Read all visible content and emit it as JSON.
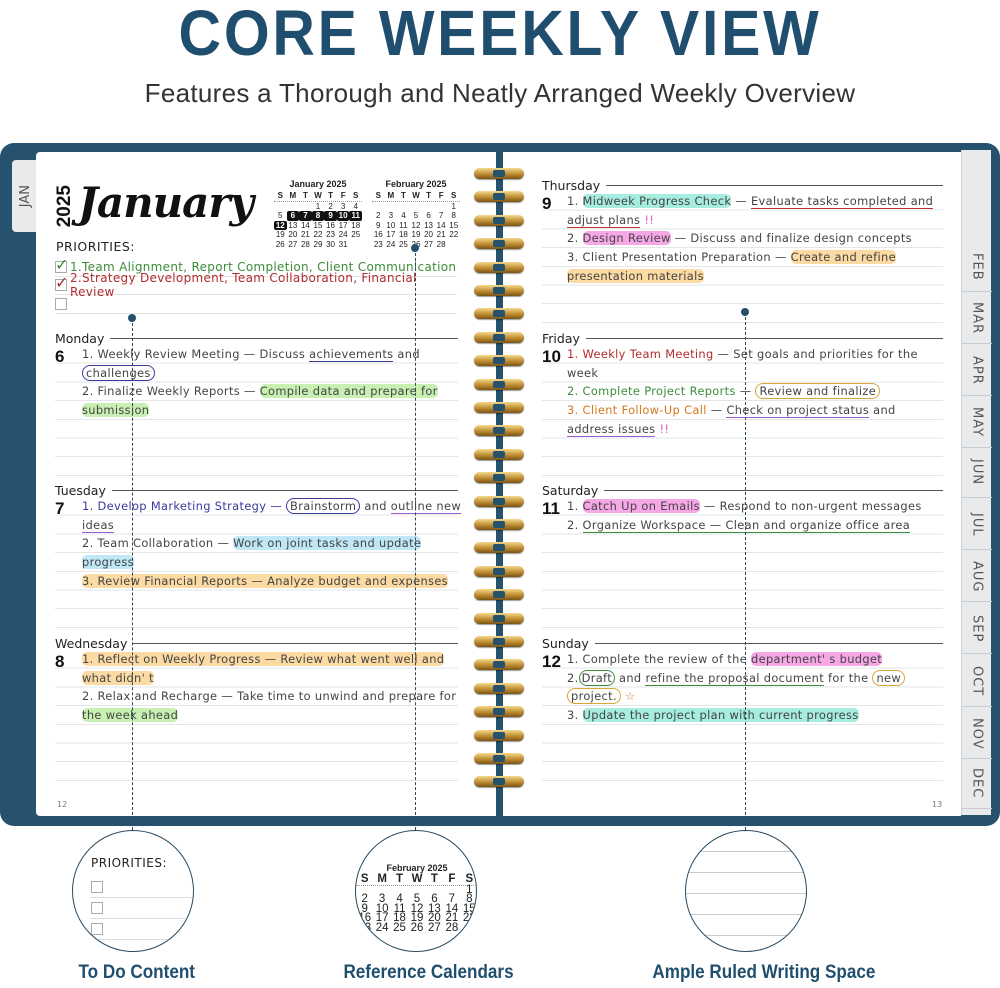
{
  "header": {
    "title": "CORE WEEKLY VIEW",
    "subtitle": "Features a Thorough and Neatly Arranged Weekly Overview"
  },
  "colors": {
    "brand": "#1f4e6e",
    "cover": "#26526e",
    "coil": "#c9993a"
  },
  "left_page": {
    "year": "2025",
    "month": "January",
    "page_number": "12",
    "tab": "JAN",
    "priorities_label": "PRIORITIES:",
    "priorities": [
      {
        "text": "1.Team Alignment, Report Completion, Client Communication",
        "checked": true,
        "color": "green"
      },
      {
        "text": "2.Strategy Development, Team Collaboration, Financial Review",
        "checked": true,
        "color": "red"
      },
      {
        "text": "",
        "checked": false,
        "color": ""
      }
    ]
  },
  "right_page": {
    "page_number": "13"
  },
  "calendars": [
    {
      "title": "January 2025",
      "weekdays": [
        "S",
        "M",
        "T",
        "W",
        "T",
        "F",
        "S"
      ],
      "weeks": [
        [
          "",
          "",
          "",
          "1",
          "2",
          "3",
          "4"
        ],
        [
          "5",
          "6",
          "7",
          "8",
          "9",
          "10",
          "11"
        ],
        [
          "12",
          "13",
          "14",
          "15",
          "16",
          "17",
          "18"
        ],
        [
          "19",
          "20",
          "21",
          "22",
          "23",
          "24",
          "25"
        ],
        [
          "26",
          "27",
          "28",
          "29",
          "30",
          "31",
          ""
        ]
      ],
      "highlighted": [
        "6",
        "7",
        "8",
        "9",
        "10",
        "11",
        "12"
      ]
    },
    {
      "title": "February 2025",
      "weekdays": [
        "S",
        "M",
        "T",
        "W",
        "T",
        "F",
        "S"
      ],
      "weeks": [
        [
          "",
          "",
          "",
          "",
          "",
          "",
          "1"
        ],
        [
          "2",
          "3",
          "4",
          "5",
          "6",
          "7",
          "8"
        ],
        [
          "9",
          "10",
          "11",
          "12",
          "13",
          "14",
          "15"
        ],
        [
          "16",
          "17",
          "18",
          "19",
          "20",
          "21",
          "22"
        ],
        [
          "23",
          "24",
          "25",
          "26",
          "27",
          "28",
          ""
        ]
      ],
      "highlighted": []
    }
  ],
  "tabs": [
    "FEB",
    "MAR",
    "APR",
    "MAY",
    "JUN",
    "JUL",
    "AUG",
    "SEP",
    "OCT",
    "NOV",
    "DEC"
  ],
  "days": [
    {
      "name": "Monday",
      "num": "6",
      "lines": [
        [
          {
            "t": "1. Weekly Review Meeting — Discuss "
          },
          {
            "t": "achievements",
            "s": "ul-blue"
          },
          {
            "t": " and"
          }
        ],
        [
          {
            "t": "challenges",
            "s": "ci-blue"
          }
        ],
        [
          {
            "t": "2. Finalize Weekly Reports — "
          },
          {
            "t": "Compile data and prepare for",
            "s": "hl-green"
          }
        ],
        [
          {
            "t": "submission",
            "s": "hl-green"
          }
        ]
      ]
    },
    {
      "name": "Tuesday",
      "num": "7",
      "lines": [
        [
          {
            "t": "1. Develop Marketing Strategy — ",
            "s": "c-blue"
          },
          {
            "t": "Brainstorm",
            "s": "ci-blue"
          },
          {
            "t": " and "
          },
          {
            "t": "outline new",
            "s": "ul-purple"
          }
        ],
        [
          {
            "t": "ideas",
            "s": "ul-purple"
          }
        ],
        [
          {
            "t": "2. Team Collaboration — "
          },
          {
            "t": "Work on joint tasks and update",
            "s": "hl-blue"
          }
        ],
        [
          {
            "t": "progress",
            "s": "hl-blue"
          }
        ],
        [
          {
            "t": "3. Review Financial Reports — Analyze budget and expenses",
            "s": "hl-orange"
          }
        ]
      ]
    },
    {
      "name": "Wednesday",
      "num": "8",
      "lines": [
        [
          {
            "t": "1. Reflect on Weekly Progress — Review what went well and",
            "s": "hl-orange"
          }
        ],
        [
          {
            "t": "what didn' t",
            "s": "hl-orange"
          }
        ],
        [
          {
            "t": "2. Relax and Recharge — Take time to unwind and prepare for"
          }
        ],
        [
          {
            "t": "the week ahead",
            "s": "hl-green"
          }
        ]
      ]
    },
    {
      "name": "Thursday",
      "num": "9",
      "lines": [
        [
          {
            "t": "1. "
          },
          {
            "t": "Midweek Progress Check",
            "s": "hl-cyan"
          },
          {
            "t": " — "
          },
          {
            "t": "Evaluate tasks completed and",
            "s": "ul-red"
          }
        ],
        [
          {
            "t": "adjust plans",
            "s": "ul-red"
          },
          {
            "t": " !!",
            "s": "c-pink"
          }
        ],
        [
          {
            "t": "2. "
          },
          {
            "t": "Design Review",
            "s": "hl-pink"
          },
          {
            "t": " — Discuss and finalize design concepts"
          }
        ],
        [
          {
            "t": "3. Client Presentation Preparation — "
          },
          {
            "t": "Create and refine",
            "s": "hl-orange"
          }
        ],
        [
          {
            "t": "presentation materials",
            "s": "hl-orange"
          }
        ]
      ]
    },
    {
      "name": "Friday",
      "num": "10",
      "lines": [
        [
          {
            "t": "1. Weekly Team Meeting",
            "s": "c-red"
          },
          {
            "t": " — Set goals and priorities for the"
          }
        ],
        [
          {
            "t": "week"
          }
        ],
        [
          {
            "t": "2. Complete Project Reports",
            "s": "c-green"
          },
          {
            "t": " — "
          },
          {
            "t": "Review and finalize",
            "s": "ci-orange"
          }
        ],
        [
          {
            "t": "3. Client Follow-Up Call",
            "s": "c-orange"
          },
          {
            "t": " — "
          },
          {
            "t": "Check on project status",
            "s": "ul-purple"
          },
          {
            "t": " and"
          }
        ],
        [
          {
            "t": "address issues",
            "s": "ul-purple"
          },
          {
            "t": " !!",
            "s": "c-pink"
          }
        ]
      ]
    },
    {
      "name": "Saturday",
      "num": "11",
      "lines": [
        [
          {
            "t": "1. "
          },
          {
            "t": "Catch Up on Emails",
            "s": "hl-pink"
          },
          {
            "t": " — Respond to non-urgent messages"
          }
        ],
        [
          {
            "t": "2. "
          },
          {
            "t": "Organize Workspace — Clean and organize office area",
            "s": "ul-green"
          }
        ]
      ]
    },
    {
      "name": "Sunday",
      "num": "12",
      "lines": [
        [
          {
            "t": "1. Complete the review of the "
          },
          {
            "t": "department' s budget",
            "s": "hl-pink"
          }
        ],
        [
          {
            "t": "2."
          },
          {
            "t": "Draft",
            "s": "ci-green"
          },
          {
            "t": " and "
          },
          {
            "t": "refine the proposal document",
            "s": "ul-green"
          },
          {
            "t": " for the "
          },
          {
            "t": "new",
            "s": "ci-orange"
          }
        ],
        [
          {
            "t": "project.",
            "s": "ci-orange"
          },
          {
            "t": " ☆",
            "s": "c-orange"
          }
        ],
        [
          {
            "t": "3. "
          },
          {
            "t": "Update the project plan with current progress",
            "s": "hl-cyan"
          }
        ]
      ]
    }
  ],
  "callouts": [
    {
      "label": "To Do Content",
      "preview_label": "PRIORITIES:"
    },
    {
      "label": "Reference Calendars",
      "preview_title": "February 2025"
    },
    {
      "label": "Ample Ruled Writing Space"
    }
  ]
}
